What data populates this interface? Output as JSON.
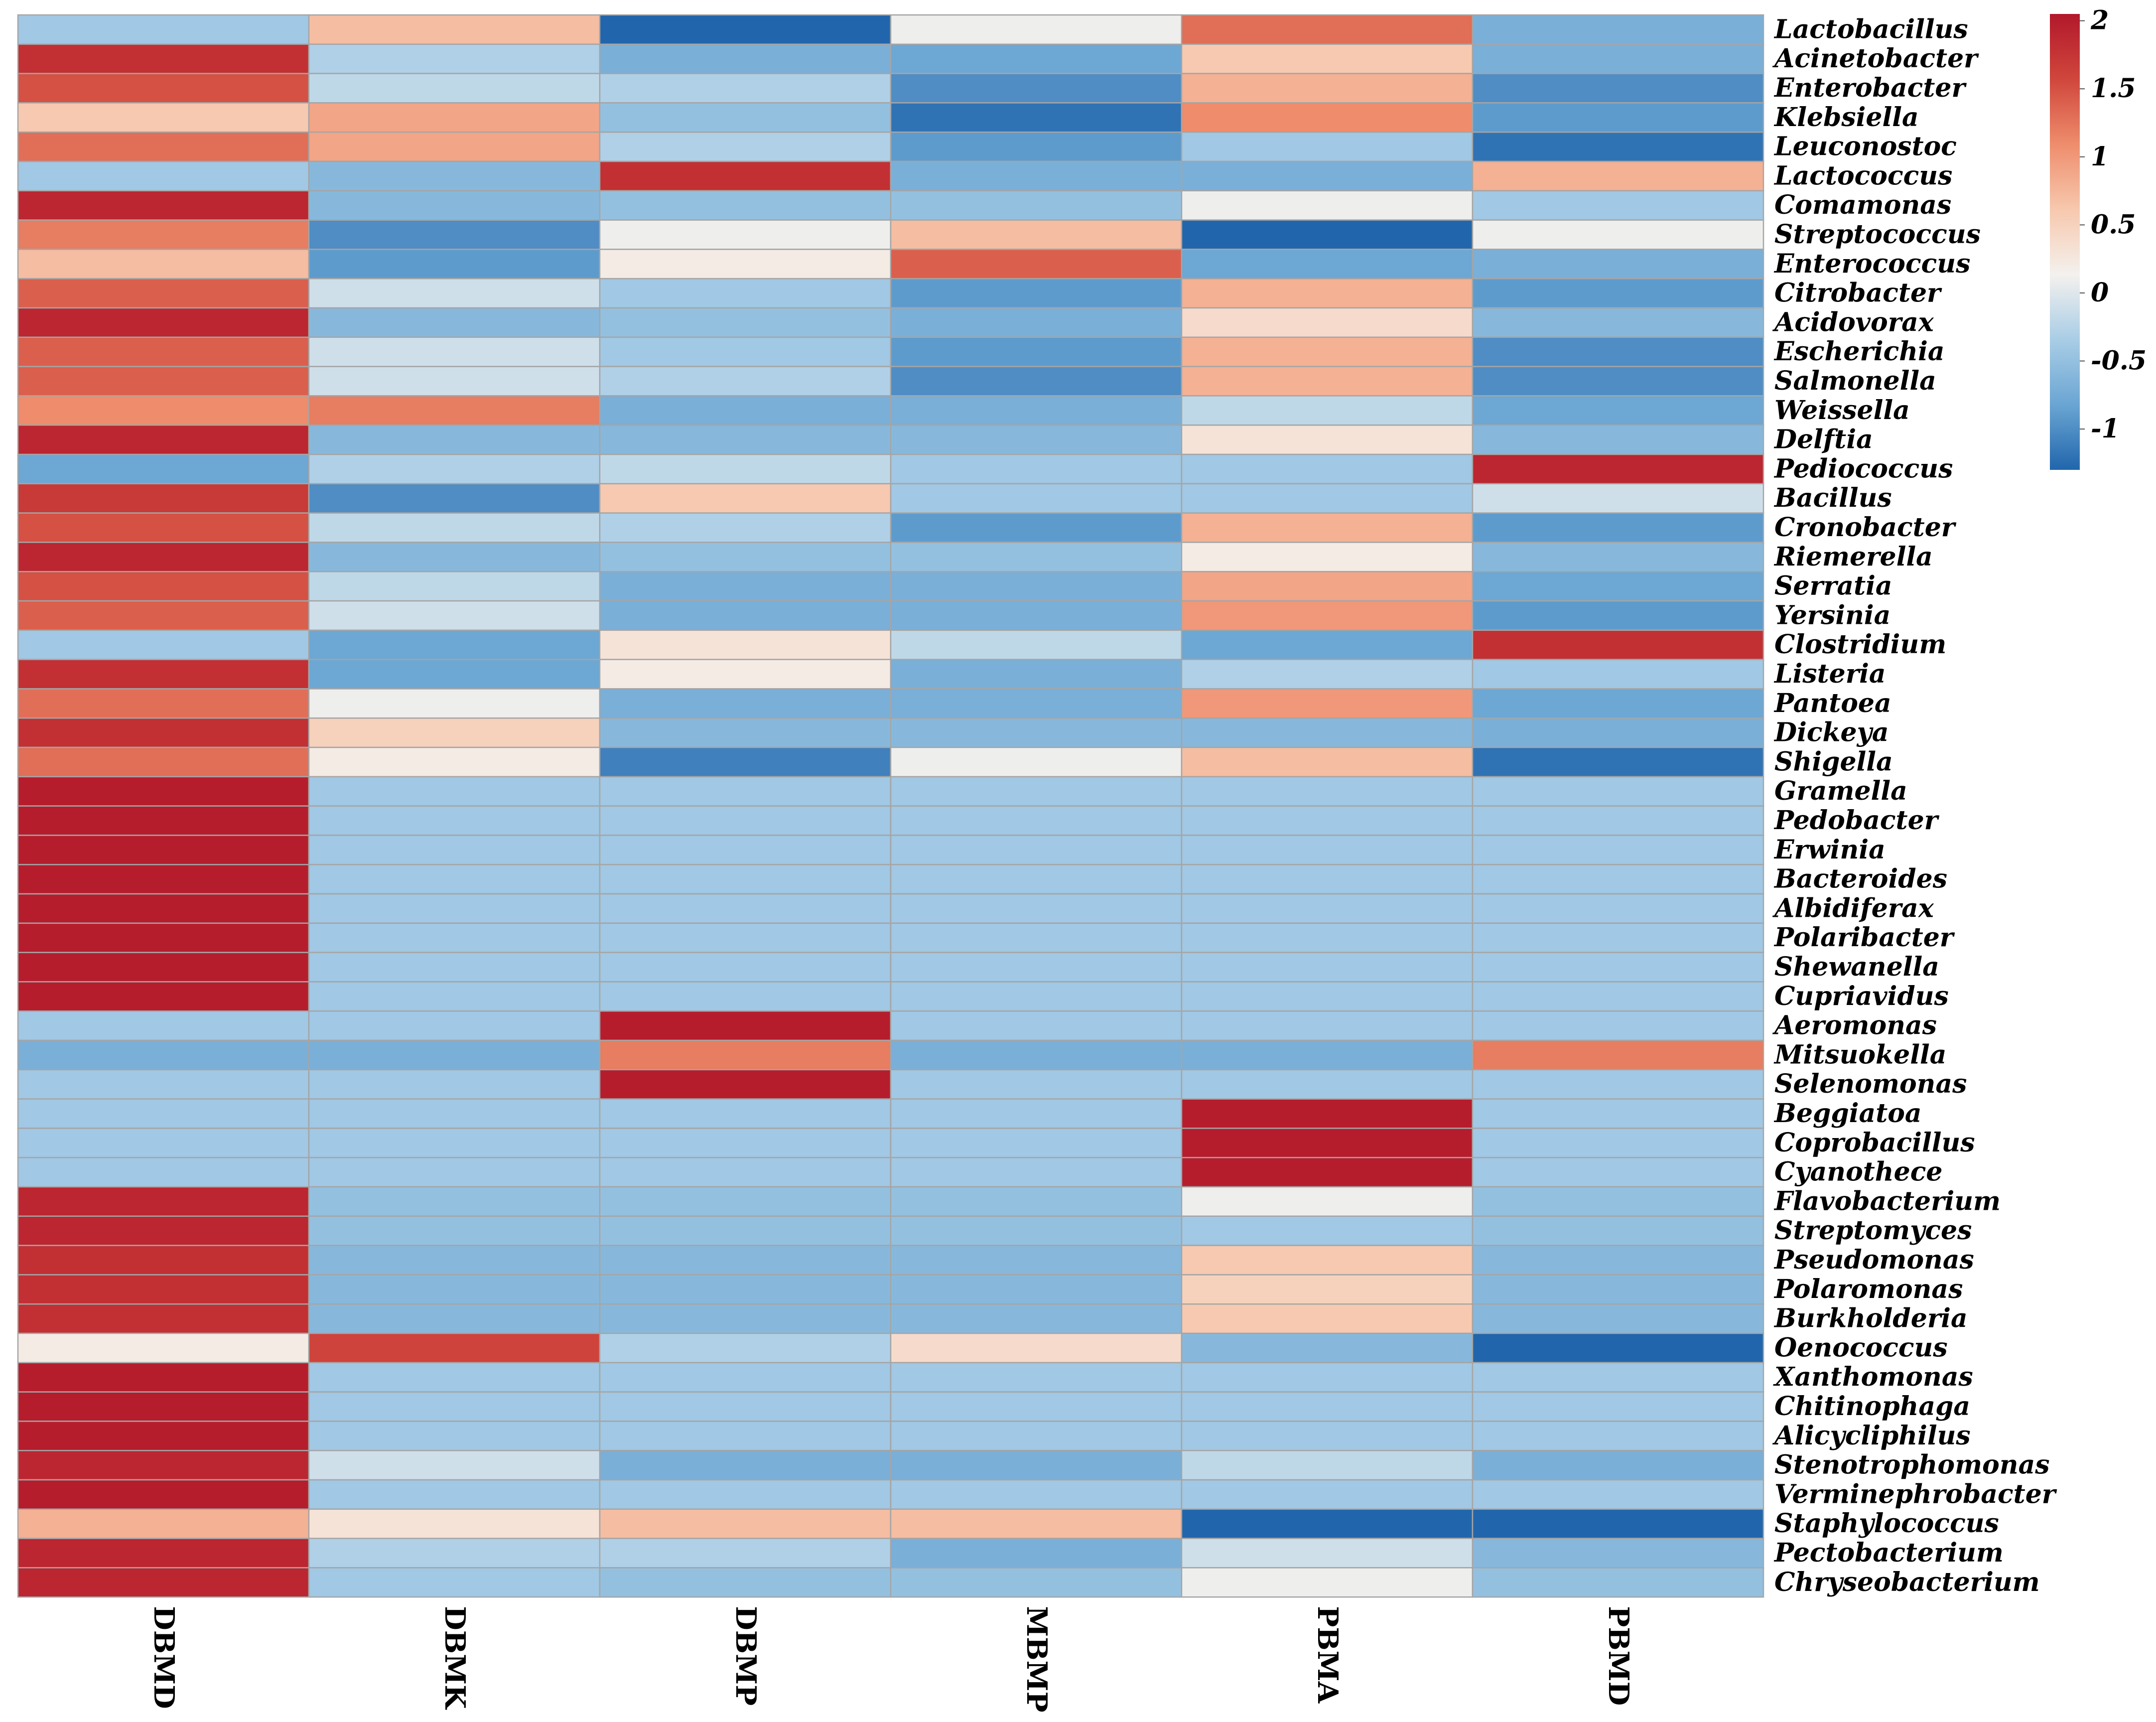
{
  "chart_data": {
    "type": "heatmap",
    "title": "",
    "xlabel": "",
    "ylabel": "",
    "columns": [
      "DBMD",
      "DBMK",
      "DBMP",
      "MBMP",
      "PBMA",
      "PBMD"
    ],
    "rows": [
      "Lactobacillus",
      "Acinetobacter",
      "Enterobacter",
      "Klebsiella",
      "Leuconostoc",
      "Lactococcus",
      "Comamonas",
      "Streptococcus",
      "Enterococcus",
      "Citrobacter",
      "Acidovorax",
      "Escherichia",
      "Salmonella",
      "Weissella",
      "Delftia",
      "Pediococcus",
      "Bacillus",
      "Cronobacter",
      "Riemerella",
      "Serratia",
      "Yersinia",
      "Clostridium",
      "Listeria",
      "Pantoea",
      "Dickeya",
      "Shigella",
      "Gramella",
      "Pedobacter",
      "Erwinia",
      "Bacteroides",
      "Albidiferax",
      "Polaribacter",
      "Shewanella",
      "Cupriavidus",
      "Aeromonas",
      "Mitsuokella",
      "Selenomonas",
      "Beggiatoa",
      "Coprobacillus",
      "Cyanothece",
      "Flavobacterium",
      "Streptomyces",
      "Pseudomonas",
      "Polaromonas",
      "Burkholderia",
      "Oenococcus",
      "Xanthomonas",
      "Chitinophaga",
      "Alicycliphilus",
      "Stenotrophomonas",
      "Verminephrobacter",
      "Staphylococcus",
      "Pectobacterium",
      "Chryseobacterium"
    ],
    "values": [
      [
        -0.4,
        0.7,
        -1.3,
        0.1,
        1.3,
        -0.7
      ],
      [
        1.8,
        -0.3,
        -0.7,
        -0.8,
        0.6,
        -0.7
      ],
      [
        1.5,
        -0.2,
        -0.3,
        -1.0,
        0.8,
        -1.0
      ],
      [
        0.6,
        0.9,
        -0.5,
        -1.2,
        1.1,
        -0.9
      ],
      [
        1.3,
        0.9,
        -0.3,
        -0.9,
        -0.4,
        -1.2
      ],
      [
        -0.4,
        -0.6,
        1.8,
        -0.7,
        -0.7,
        0.8
      ],
      [
        1.9,
        -0.6,
        -0.5,
        -0.5,
        0.1,
        -0.4
      ],
      [
        1.2,
        -1.0,
        0.1,
        0.7,
        -1.3,
        0.1
      ],
      [
        0.7,
        -0.9,
        0.2,
        1.4,
        -0.8,
        -0.7
      ],
      [
        1.4,
        -0.1,
        -0.4,
        -0.9,
        0.8,
        -0.9
      ],
      [
        1.9,
        -0.6,
        -0.5,
        -0.7,
        0.4,
        -0.6
      ],
      [
        1.4,
        -0.1,
        -0.4,
        -0.9,
        0.8,
        -1.0
      ],
      [
        1.4,
        -0.1,
        -0.3,
        -1.0,
        0.8,
        -1.0
      ],
      [
        1.1,
        1.2,
        -0.7,
        -0.7,
        -0.2,
        -0.8
      ],
      [
        1.9,
        -0.6,
        -0.6,
        -0.6,
        0.3,
        -0.6
      ],
      [
        -0.8,
        -0.3,
        -0.2,
        -0.4,
        -0.4,
        1.9
      ],
      [
        1.7,
        -1.0,
        0.6,
        -0.4,
        -0.4,
        -0.1
      ],
      [
        1.5,
        -0.2,
        -0.3,
        -0.9,
        0.8,
        -0.9
      ],
      [
        1.9,
        -0.6,
        -0.5,
        -0.5,
        0.2,
        -0.6
      ],
      [
        1.5,
        -0.2,
        -0.7,
        -0.7,
        0.9,
        -0.8
      ],
      [
        1.4,
        -0.1,
        -0.7,
        -0.7,
        1.0,
        -0.9
      ],
      [
        -0.4,
        -0.8,
        0.3,
        -0.2,
        -0.8,
        1.8
      ],
      [
        1.8,
        -0.8,
        0.2,
        -0.7,
        -0.3,
        -0.4
      ],
      [
        1.3,
        0.1,
        -0.7,
        -0.7,
        1.0,
        -0.8
      ],
      [
        1.8,
        0.5,
        -0.6,
        -0.6,
        -0.6,
        -0.7
      ],
      [
        1.3,
        0.2,
        -1.1,
        0.1,
        0.7,
        -1.2
      ],
      [
        2.0,
        -0.4,
        -0.4,
        -0.4,
        -0.4,
        -0.4
      ],
      [
        2.0,
        -0.4,
        -0.4,
        -0.4,
        -0.4,
        -0.4
      ],
      [
        2.0,
        -0.4,
        -0.4,
        -0.4,
        -0.4,
        -0.4
      ],
      [
        2.0,
        -0.4,
        -0.4,
        -0.4,
        -0.4,
        -0.4
      ],
      [
        2.0,
        -0.4,
        -0.4,
        -0.4,
        -0.4,
        -0.4
      ],
      [
        2.0,
        -0.4,
        -0.4,
        -0.4,
        -0.4,
        -0.4
      ],
      [
        2.0,
        -0.4,
        -0.4,
        -0.4,
        -0.4,
        -0.4
      ],
      [
        2.0,
        -0.4,
        -0.4,
        -0.4,
        -0.4,
        -0.4
      ],
      [
        -0.4,
        -0.4,
        2.0,
        -0.4,
        -0.4,
        -0.4
      ],
      [
        -0.7,
        -0.7,
        1.2,
        -0.7,
        -0.7,
        1.2
      ],
      [
        -0.4,
        -0.4,
        2.0,
        -0.4,
        -0.4,
        -0.4
      ],
      [
        -0.4,
        -0.4,
        -0.4,
        -0.4,
        2.0,
        -0.4
      ],
      [
        -0.4,
        -0.4,
        -0.4,
        -0.4,
        2.0,
        -0.4
      ],
      [
        -0.4,
        -0.4,
        -0.4,
        -0.4,
        2.0,
        -0.4
      ],
      [
        1.9,
        -0.5,
        -0.5,
        -0.5,
        0.1,
        -0.5
      ],
      [
        1.9,
        -0.5,
        -0.5,
        -0.5,
        -0.4,
        -0.5
      ],
      [
        1.8,
        -0.6,
        -0.6,
        -0.6,
        0.6,
        -0.6
      ],
      [
        1.8,
        -0.6,
        -0.6,
        -0.6,
        0.5,
        -0.6
      ],
      [
        1.8,
        -0.6,
        -0.6,
        -0.6,
        0.6,
        -0.6
      ],
      [
        0.2,
        1.6,
        -0.3,
        0.4,
        -0.6,
        -1.3
      ],
      [
        2.0,
        -0.4,
        -0.4,
        -0.4,
        -0.4,
        -0.4
      ],
      [
        2.0,
        -0.4,
        -0.4,
        -0.4,
        -0.4,
        -0.4
      ],
      [
        2.0,
        -0.4,
        -0.4,
        -0.4,
        -0.4,
        -0.4
      ],
      [
        1.9,
        -0.1,
        -0.7,
        -0.7,
        -0.2,
        -0.7
      ],
      [
        2.0,
        -0.4,
        -0.4,
        -0.4,
        -0.4,
        -0.4
      ],
      [
        0.8,
        0.3,
        0.7,
        0.7,
        -1.3,
        -1.3
      ],
      [
        1.9,
        -0.3,
        -0.3,
        -0.7,
        -0.1,
        -0.6
      ],
      [
        1.9,
        -0.4,
        -0.5,
        -0.5,
        0.1,
        -0.5
      ]
    ],
    "colorbar": {
      "min": -1.3,
      "max": 2.05,
      "ticks": [
        "2",
        "1.5",
        "1",
        "0.5",
        "0",
        "-0.5",
        "-1"
      ],
      "tick_values": [
        2,
        1.5,
        1,
        0.5,
        0,
        -0.5,
        -1
      ],
      "scale_colors": [
        "#2166ac",
        "#6aa5d3",
        "#a9cde6",
        "#f4f1ee",
        "#f7c8ae",
        "#ee8d6c",
        "#d0463c",
        "#b2182b"
      ]
    },
    "grid_color": "#a5a5a5",
    "legend": "colorbar right"
  }
}
